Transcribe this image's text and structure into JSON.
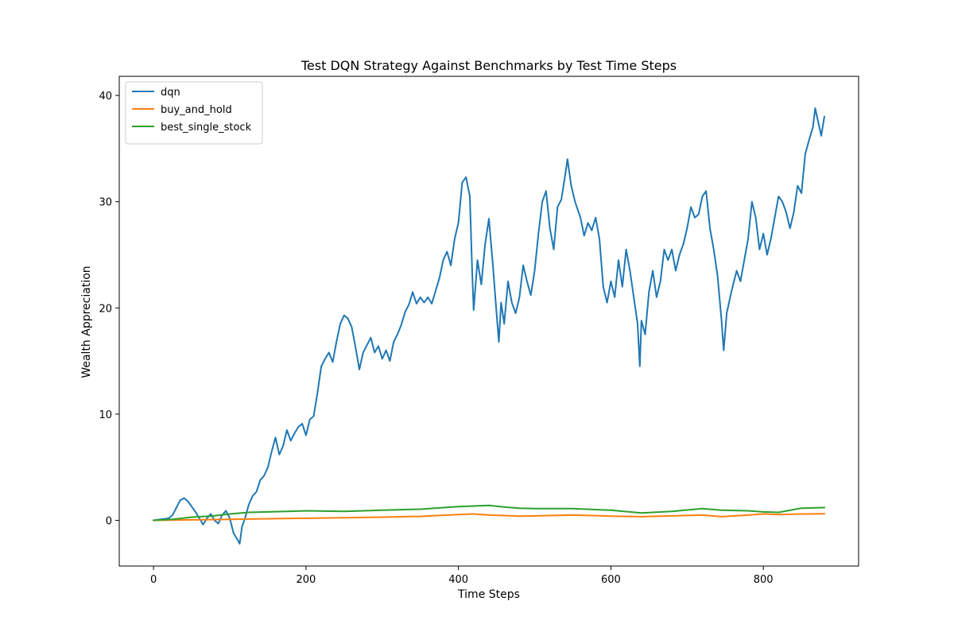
{
  "chart_data": {
    "type": "line",
    "title": "Test DQN Strategy Against Benchmarks by Test Time Steps",
    "xlabel": "Time Steps",
    "ylabel": "Wealth Appreciation",
    "xlim": [
      -45,
      925
    ],
    "ylim": [
      -4.3,
      41.8
    ],
    "xticks": [
      0,
      200,
      400,
      600,
      800
    ],
    "yticks": [
      0,
      10,
      20,
      30,
      40
    ],
    "grid": false,
    "legend_position": "top-left",
    "series": [
      {
        "name": "dqn",
        "color": "#1f77b4",
        "points": [
          [
            0,
            0
          ],
          [
            10,
            0.1
          ],
          [
            20,
            0.2
          ],
          [
            25,
            0.5
          ],
          [
            30,
            1.2
          ],
          [
            35,
            1.9
          ],
          [
            40,
            2.1
          ],
          [
            45,
            1.8
          ],
          [
            50,
            1.3
          ],
          [
            55,
            0.8
          ],
          [
            60,
            0.2
          ],
          [
            65,
            -0.4
          ],
          [
            70,
            0.2
          ],
          [
            75,
            0.6
          ],
          [
            80,
            0.0
          ],
          [
            85,
            -0.3
          ],
          [
            90,
            0.5
          ],
          [
            95,
            0.9
          ],
          [
            100,
            0.2
          ],
          [
            105,
            -1.2
          ],
          [
            110,
            -1.8
          ],
          [
            113,
            -2.2
          ],
          [
            116,
            -0.6
          ],
          [
            120,
            0.2
          ],
          [
            125,
            1.5
          ],
          [
            130,
            2.3
          ],
          [
            135,
            2.7
          ],
          [
            140,
            3.8
          ],
          [
            145,
            4.2
          ],
          [
            150,
            5.0
          ],
          [
            155,
            6.5
          ],
          [
            160,
            7.8
          ],
          [
            165,
            6.2
          ],
          [
            170,
            7.0
          ],
          [
            175,
            8.5
          ],
          [
            180,
            7.5
          ],
          [
            185,
            8.2
          ],
          [
            190,
            8.8
          ],
          [
            195,
            9.1
          ],
          [
            200,
            8.0
          ],
          [
            205,
            9.5
          ],
          [
            210,
            9.8
          ],
          [
            215,
            12.0
          ],
          [
            220,
            14.5
          ],
          [
            225,
            15.2
          ],
          [
            230,
            15.8
          ],
          [
            235,
            14.9
          ],
          [
            240,
            16.8
          ],
          [
            245,
            18.5
          ],
          [
            250,
            19.3
          ],
          [
            255,
            19.0
          ],
          [
            260,
            18.2
          ],
          [
            265,
            16.3
          ],
          [
            270,
            14.2
          ],
          [
            275,
            15.8
          ],
          [
            280,
            16.5
          ],
          [
            285,
            17.2
          ],
          [
            290,
            15.8
          ],
          [
            295,
            16.4
          ],
          [
            300,
            15.2
          ],
          [
            305,
            16.0
          ],
          [
            310,
            15.0
          ],
          [
            315,
            16.8
          ],
          [
            320,
            17.5
          ],
          [
            325,
            18.4
          ],
          [
            330,
            19.6
          ],
          [
            335,
            20.3
          ],
          [
            340,
            21.5
          ],
          [
            345,
            20.4
          ],
          [
            350,
            21.0
          ],
          [
            355,
            20.5
          ],
          [
            360,
            21.0
          ],
          [
            365,
            20.4
          ],
          [
            370,
            21.6
          ],
          [
            375,
            22.8
          ],
          [
            380,
            24.5
          ],
          [
            385,
            25.3
          ],
          [
            390,
            24.0
          ],
          [
            395,
            26.5
          ],
          [
            400,
            28.0
          ],
          [
            405,
            31.8
          ],
          [
            410,
            32.3
          ],
          [
            415,
            30.5
          ],
          [
            418,
            23.5
          ],
          [
            420,
            19.8
          ],
          [
            425,
            24.5
          ],
          [
            430,
            22.2
          ],
          [
            435,
            26.0
          ],
          [
            440,
            28.4
          ],
          [
            445,
            24.2
          ],
          [
            450,
            19.5
          ],
          [
            453,
            16.8
          ],
          [
            456,
            20.5
          ],
          [
            460,
            18.5
          ],
          [
            465,
            22.5
          ],
          [
            470,
            20.5
          ],
          [
            475,
            19.5
          ],
          [
            480,
            21.0
          ],
          [
            485,
            24.0
          ],
          [
            490,
            22.5
          ],
          [
            495,
            21.2
          ],
          [
            500,
            23.5
          ],
          [
            505,
            27.0
          ],
          [
            510,
            30.0
          ],
          [
            515,
            31.0
          ],
          [
            520,
            27.5
          ],
          [
            525,
            25.5
          ],
          [
            530,
            29.5
          ],
          [
            535,
            30.2
          ],
          [
            540,
            32.5
          ],
          [
            543,
            34.0
          ],
          [
            548,
            31.5
          ],
          [
            553,
            30.0
          ],
          [
            560,
            28.5
          ],
          [
            565,
            26.8
          ],
          [
            570,
            28.0
          ],
          [
            575,
            27.3
          ],
          [
            580,
            28.5
          ],
          [
            585,
            26.5
          ],
          [
            590,
            22.0
          ],
          [
            595,
            20.5
          ],
          [
            600,
            22.5
          ],
          [
            605,
            21.0
          ],
          [
            610,
            24.5
          ],
          [
            615,
            22.0
          ],
          [
            620,
            25.5
          ],
          [
            625,
            23.5
          ],
          [
            630,
            21.0
          ],
          [
            635,
            18.5
          ],
          [
            638,
            14.5
          ],
          [
            640,
            18.8
          ],
          [
            645,
            17.5
          ],
          [
            650,
            21.5
          ],
          [
            655,
            23.5
          ],
          [
            660,
            21.0
          ],
          [
            665,
            22.5
          ],
          [
            670,
            25.5
          ],
          [
            675,
            24.5
          ],
          [
            680,
            25.5
          ],
          [
            685,
            23.5
          ],
          [
            690,
            25.0
          ],
          [
            695,
            26.0
          ],
          [
            700,
            27.5
          ],
          [
            705,
            29.5
          ],
          [
            710,
            28.5
          ],
          [
            715,
            28.8
          ],
          [
            720,
            30.5
          ],
          [
            725,
            31.0
          ],
          [
            730,
            27.5
          ],
          [
            735,
            25.5
          ],
          [
            740,
            23.0
          ],
          [
            745,
            19.0
          ],
          [
            748,
            16.0
          ],
          [
            752,
            19.5
          ],
          [
            758,
            21.5
          ],
          [
            765,
            23.5
          ],
          [
            770,
            22.5
          ],
          [
            775,
            24.5
          ],
          [
            780,
            26.5
          ],
          [
            785,
            30.0
          ],
          [
            790,
            28.5
          ],
          [
            795,
            25.5
          ],
          [
            800,
            27.0
          ],
          [
            805,
            25.0
          ],
          [
            810,
            26.5
          ],
          [
            815,
            28.5
          ],
          [
            820,
            30.5
          ],
          [
            825,
            30.0
          ],
          [
            830,
            29.0
          ],
          [
            835,
            27.5
          ],
          [
            840,
            29.0
          ],
          [
            845,
            31.5
          ],
          [
            850,
            30.8
          ],
          [
            855,
            34.5
          ],
          [
            860,
            35.8
          ],
          [
            865,
            37.0
          ],
          [
            868,
            38.8
          ],
          [
            872,
            37.5
          ],
          [
            876,
            36.2
          ],
          [
            880,
            38.0
          ]
        ]
      },
      {
        "name": "buy_and_hold",
        "color": "#ff7f0e",
        "points": [
          [
            0,
            0
          ],
          [
            50,
            0.05
          ],
          [
            100,
            0.1
          ],
          [
            150,
            0.15
          ],
          [
            200,
            0.2
          ],
          [
            250,
            0.25
          ],
          [
            300,
            0.3
          ],
          [
            350,
            0.38
          ],
          [
            400,
            0.55
          ],
          [
            420,
            0.6
          ],
          [
            440,
            0.5
          ],
          [
            460,
            0.45
          ],
          [
            480,
            0.4
          ],
          [
            500,
            0.42
          ],
          [
            550,
            0.5
          ],
          [
            600,
            0.4
          ],
          [
            640,
            0.35
          ],
          [
            680,
            0.42
          ],
          [
            720,
            0.5
          ],
          [
            745,
            0.35
          ],
          [
            780,
            0.5
          ],
          [
            800,
            0.6
          ],
          [
            820,
            0.55
          ],
          [
            850,
            0.6
          ],
          [
            880,
            0.62
          ]
        ]
      },
      {
        "name": "best_single_stock",
        "color": "#2ca02c",
        "points": [
          [
            0,
            0
          ],
          [
            25,
            0.1
          ],
          [
            50,
            0.3
          ],
          [
            75,
            0.4
          ],
          [
            100,
            0.6
          ],
          [
            125,
            0.75
          ],
          [
            150,
            0.8
          ],
          [
            175,
            0.85
          ],
          [
            200,
            0.9
          ],
          [
            250,
            0.85
          ],
          [
            300,
            0.95
          ],
          [
            350,
            1.05
          ],
          [
            400,
            1.3
          ],
          [
            420,
            1.35
          ],
          [
            440,
            1.4
          ],
          [
            460,
            1.25
          ],
          [
            480,
            1.15
          ],
          [
            500,
            1.1
          ],
          [
            550,
            1.1
          ],
          [
            600,
            0.95
          ],
          [
            640,
            0.7
          ],
          [
            680,
            0.85
          ],
          [
            720,
            1.1
          ],
          [
            745,
            0.95
          ],
          [
            780,
            0.9
          ],
          [
            800,
            0.8
          ],
          [
            820,
            0.75
          ],
          [
            850,
            1.15
          ],
          [
            880,
            1.2
          ]
        ]
      }
    ]
  }
}
